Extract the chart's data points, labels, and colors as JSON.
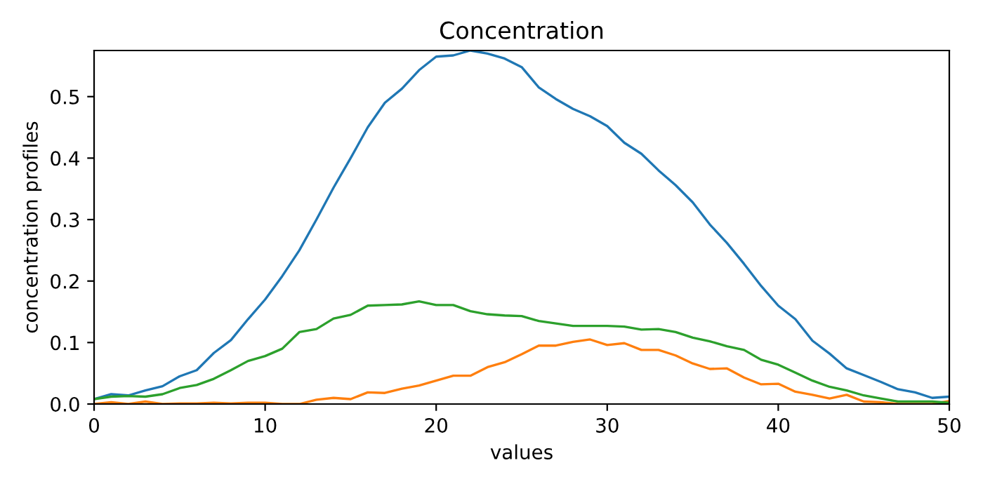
{
  "chart_data": {
    "type": "line",
    "title": "Concentration",
    "xlabel": "values",
    "ylabel": "concentration profiles",
    "x": [
      0,
      1,
      2,
      3,
      4,
      5,
      6,
      7,
      8,
      9,
      10,
      11,
      12,
      13,
      14,
      15,
      16,
      17,
      18,
      19,
      20,
      21,
      22,
      23,
      24,
      25,
      26,
      27,
      28,
      29,
      30,
      31,
      32,
      33,
      34,
      35,
      36,
      37,
      38,
      39,
      40,
      41,
      42,
      43,
      44,
      45,
      46,
      47,
      48,
      49,
      50
    ],
    "series": [
      {
        "color": "#1f77b4",
        "values": [
          0.008,
          0.016,
          0.014,
          0.022,
          0.029,
          0.045,
          0.055,
          0.083,
          0.104,
          0.138,
          0.17,
          0.208,
          0.25,
          0.3,
          0.352,
          0.4,
          0.45,
          0.49,
          0.513,
          0.543,
          0.565,
          0.567,
          0.575,
          0.57,
          0.562,
          0.548,
          0.515,
          0.496,
          0.48,
          0.468,
          0.452,
          0.425,
          0.407,
          0.38,
          0.356,
          0.328,
          0.292,
          0.262,
          0.228,
          0.192,
          0.16,
          0.138,
          0.103,
          0.082,
          0.058,
          0.047,
          0.036,
          0.024,
          0.019,
          0.01,
          0.012
        ]
      },
      {
        "color": "#ff7f0e",
        "values": [
          0.0,
          0.003,
          0.0,
          0.004,
          0.0,
          0.001,
          0.001,
          0.002,
          0.001,
          0.002,
          0.002,
          0.0,
          0.0,
          0.007,
          0.01,
          0.008,
          0.019,
          0.018,
          0.025,
          0.03,
          0.038,
          0.046,
          0.046,
          0.06,
          0.068,
          0.081,
          0.095,
          0.095,
          0.101,
          0.105,
          0.096,
          0.099,
          0.088,
          0.088,
          0.079,
          0.066,
          0.057,
          0.058,
          0.043,
          0.032,
          0.033,
          0.02,
          0.015,
          0.009,
          0.015,
          0.004,
          0.003,
          0.0,
          0.0,
          0.0,
          0.005
        ]
      },
      {
        "color": "#2ca02c",
        "values": [
          0.008,
          0.012,
          0.013,
          0.012,
          0.016,
          0.026,
          0.031,
          0.041,
          0.055,
          0.07,
          0.078,
          0.09,
          0.117,
          0.122,
          0.139,
          0.145,
          0.16,
          0.161,
          0.162,
          0.167,
          0.161,
          0.161,
          0.151,
          0.146,
          0.144,
          0.143,
          0.135,
          0.131,
          0.127,
          0.127,
          0.127,
          0.126,
          0.121,
          0.122,
          0.117,
          0.108,
          0.102,
          0.094,
          0.088,
          0.072,
          0.064,
          0.051,
          0.038,
          0.028,
          0.022,
          0.014,
          0.009,
          0.004,
          0.004,
          0.004,
          0.002
        ]
      }
    ],
    "xlim": [
      0,
      50
    ],
    "xticks": [
      0,
      10,
      20,
      30,
      40,
      50
    ],
    "ylim": [
      0,
      0.575
    ],
    "yticks": [
      {
        "value": 0,
        "label": "0.0"
      },
      {
        "value": 0.1,
        "label": "0.1"
      },
      {
        "value": 0.2,
        "label": "0.2"
      },
      {
        "value": 0.3,
        "label": "0.3"
      },
      {
        "value": 0.4,
        "label": "0.4"
      },
      {
        "value": 0.5,
        "label": "0.5"
      }
    ],
    "grid": false,
    "marker": "none",
    "line_style": "solid"
  }
}
